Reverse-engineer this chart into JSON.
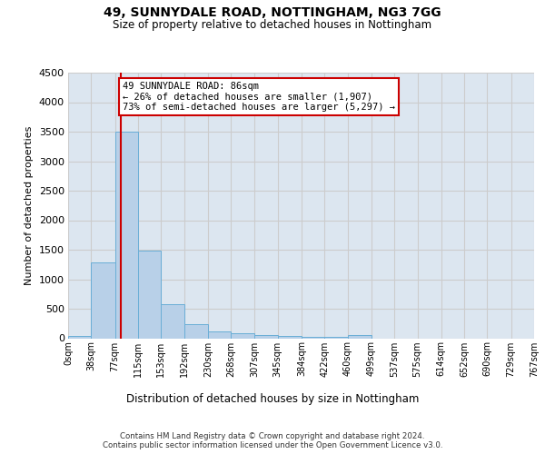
{
  "title1": "49, SUNNYDALE ROAD, NOTTINGHAM, NG3 7GG",
  "title2": "Size of property relative to detached houses in Nottingham",
  "xlabel": "Distribution of detached houses by size in Nottingham",
  "ylabel": "Number of detached properties",
  "footer_line1": "Contains HM Land Registry data © Crown copyright and database right 2024.",
  "footer_line2": "Contains public sector information licensed under the Open Government Licence v3.0.",
  "bin_edges": [
    0,
    38,
    77,
    115,
    153,
    192,
    230,
    268,
    307,
    345,
    384,
    422,
    460,
    499,
    537,
    575,
    614,
    652,
    690,
    729,
    767
  ],
  "bar_heights": [
    40,
    1280,
    3500,
    1480,
    580,
    240,
    115,
    80,
    55,
    40,
    30,
    30,
    55,
    0,
    0,
    0,
    0,
    0,
    0,
    0
  ],
  "bar_color": "#b8d0e8",
  "bar_edgecolor": "#6aaed6",
  "property_line_x": 86,
  "property_line_color": "#cc0000",
  "annotation_line1": "49 SUNNYDALE ROAD: 86sqm",
  "annotation_line2": "← 26% of detached houses are smaller (1,907)",
  "annotation_line3": "73% of semi-detached houses are larger (5,297) →",
  "ylim_max": 4500,
  "yticks": [
    0,
    500,
    1000,
    1500,
    2000,
    2500,
    3000,
    3500,
    4000,
    4500
  ],
  "grid_color": "#cccccc",
  "axes_bg_color": "#dce6f0"
}
